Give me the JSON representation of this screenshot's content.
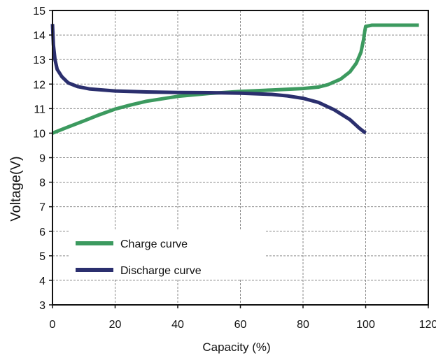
{
  "chart_data": {
    "type": "line",
    "xlabel": "Capacity (%)",
    "ylabel": "Voltage(V)",
    "xlim": [
      0,
      120
    ],
    "ylim": [
      3,
      15
    ],
    "xticks": [
      0,
      20,
      40,
      60,
      80,
      100,
      120
    ],
    "yticks": [
      3,
      4,
      5,
      6,
      7,
      8,
      9,
      10,
      11,
      12,
      13,
      14,
      15
    ],
    "grid": true,
    "grid_style": "dashed",
    "legend_position": "bottom-left",
    "series": [
      {
        "name": "Charge curve",
        "color": "#3c9a5f",
        "x": [
          0,
          5,
          10,
          15,
          20,
          25,
          30,
          40,
          50,
          60,
          70,
          80,
          85,
          88,
          92,
          95,
          97,
          98.5,
          99.3,
          99.7,
          100,
          102,
          105,
          110,
          117
        ],
        "y": [
          10.0,
          10.25,
          10.5,
          10.75,
          10.98,
          11.15,
          11.3,
          11.5,
          11.62,
          11.7,
          11.76,
          11.82,
          11.88,
          11.98,
          12.2,
          12.5,
          12.85,
          13.3,
          13.8,
          14.15,
          14.35,
          14.4,
          14.4,
          14.4,
          14.4
        ]
      },
      {
        "name": "Discharge curve",
        "color": "#2b2f6e",
        "x": [
          0,
          0.3,
          0.8,
          1.5,
          3,
          5,
          8,
          12,
          20,
          30,
          40,
          50,
          60,
          70,
          75,
          80,
          85,
          90,
          95,
          98,
          100
        ],
        "y": [
          14.45,
          13.6,
          13.0,
          12.6,
          12.3,
          12.05,
          11.9,
          11.8,
          11.72,
          11.68,
          11.66,
          11.65,
          11.63,
          11.58,
          11.52,
          11.42,
          11.25,
          10.95,
          10.55,
          10.2,
          10.0
        ]
      }
    ]
  }
}
